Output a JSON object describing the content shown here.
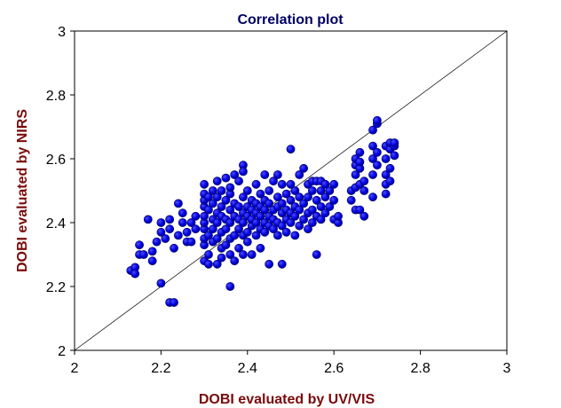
{
  "colors": {
    "title": "#000066",
    "axis_label": "#7a0a0a",
    "points": "#0000e0",
    "point_edge": "#000060"
  },
  "chart_data": {
    "type": "scatter",
    "title": "Correlation plot",
    "xlabel": "DOBI evaluated by UV/VIS",
    "ylabel": "DOBI evaluated by NIRS",
    "xlim": [
      2,
      3
    ],
    "ylim": [
      2,
      3
    ],
    "xticks": [
      "2",
      "2.2",
      "2.4",
      "2.6",
      "2.8",
      "3"
    ],
    "yticks": [
      "2",
      "2.2",
      "2.4",
      "2.6",
      "2.8",
      "3"
    ],
    "grid": false,
    "reference_line": "y = x",
    "points": [
      [
        2.13,
        2.25
      ],
      [
        2.14,
        2.26
      ],
      [
        2.14,
        2.24
      ],
      [
        2.15,
        2.3
      ],
      [
        2.15,
        2.33
      ],
      [
        2.16,
        2.3
      ],
      [
        2.17,
        2.41
      ],
      [
        2.18,
        2.28
      ],
      [
        2.18,
        2.31
      ],
      [
        2.19,
        2.34
      ],
      [
        2.2,
        2.21
      ],
      [
        2.2,
        2.37
      ],
      [
        2.2,
        2.4
      ],
      [
        2.21,
        2.35
      ],
      [
        2.22,
        2.41
      ],
      [
        2.22,
        2.15
      ],
      [
        2.23,
        2.15
      ],
      [
        2.22,
        2.38
      ],
      [
        2.23,
        2.32
      ],
      [
        2.24,
        2.36
      ],
      [
        2.24,
        2.46
      ],
      [
        2.25,
        2.4
      ],
      [
        2.25,
        2.43
      ],
      [
        2.26,
        2.37
      ],
      [
        2.26,
        2.34
      ],
      [
        2.27,
        2.34
      ],
      [
        2.27,
        2.4
      ],
      [
        2.28,
        2.38
      ],
      [
        2.28,
        2.42
      ],
      [
        2.3,
        2.28
      ],
      [
        2.3,
        2.33
      ],
      [
        2.3,
        2.35
      ],
      [
        2.3,
        2.38
      ],
      [
        2.3,
        2.4
      ],
      [
        2.3,
        2.42
      ],
      [
        2.3,
        2.45
      ],
      [
        2.3,
        2.47
      ],
      [
        2.3,
        2.49
      ],
      [
        2.3,
        2.52
      ],
      [
        2.31,
        2.27
      ],
      [
        2.31,
        2.3
      ],
      [
        2.31,
        2.36
      ],
      [
        2.31,
        2.44
      ],
      [
        2.31,
        2.48
      ],
      [
        2.32,
        2.34
      ],
      [
        2.32,
        2.38
      ],
      [
        2.32,
        2.41
      ],
      [
        2.32,
        2.46
      ],
      [
        2.32,
        2.5
      ],
      [
        2.33,
        2.27
      ],
      [
        2.33,
        2.35
      ],
      [
        2.33,
        2.4
      ],
      [
        2.33,
        2.43
      ],
      [
        2.33,
        2.48
      ],
      [
        2.33,
        2.53
      ],
      [
        2.34,
        2.29
      ],
      [
        2.34,
        2.32
      ],
      [
        2.34,
        2.37
      ],
      [
        2.34,
        2.42
      ],
      [
        2.34,
        2.45
      ],
      [
        2.34,
        2.5
      ],
      [
        2.35,
        2.33
      ],
      [
        2.35,
        2.38
      ],
      [
        2.35,
        2.41
      ],
      [
        2.35,
        2.47
      ],
      [
        2.35,
        2.54
      ],
      [
        2.36,
        2.2
      ],
      [
        2.36,
        2.3
      ],
      [
        2.36,
        2.35
      ],
      [
        2.36,
        2.4
      ],
      [
        2.36,
        2.44
      ],
      [
        2.36,
        2.49
      ],
      [
        2.36,
        2.51
      ],
      [
        2.37,
        2.28
      ],
      [
        2.37,
        2.36
      ],
      [
        2.37,
        2.42
      ],
      [
        2.37,
        2.46
      ],
      [
        2.37,
        2.55
      ],
      [
        2.38,
        2.32
      ],
      [
        2.38,
        2.38
      ],
      [
        2.38,
        2.41
      ],
      [
        2.38,
        2.45
      ],
      [
        2.38,
        2.53
      ],
      [
        2.39,
        2.3
      ],
      [
        2.39,
        2.36
      ],
      [
        2.39,
        2.4
      ],
      [
        2.39,
        2.43
      ],
      [
        2.39,
        2.48
      ],
      [
        2.39,
        2.58
      ],
      [
        2.39,
        2.56
      ],
      [
        2.4,
        2.34
      ],
      [
        2.4,
        2.37
      ],
      [
        2.4,
        2.42
      ],
      [
        2.4,
        2.45
      ],
      [
        2.4,
        2.5
      ],
      [
        2.41,
        2.3
      ],
      [
        2.41,
        2.39
      ],
      [
        2.41,
        2.41
      ],
      [
        2.41,
        2.44
      ],
      [
        2.41,
        2.47
      ],
      [
        2.42,
        2.36
      ],
      [
        2.42,
        2.4
      ],
      [
        2.42,
        2.43
      ],
      [
        2.42,
        2.46
      ],
      [
        2.42,
        2.52
      ],
      [
        2.43,
        2.32
      ],
      [
        2.43,
        2.38
      ],
      [
        2.43,
        2.42
      ],
      [
        2.43,
        2.45
      ],
      [
        2.43,
        2.49
      ],
      [
        2.44,
        2.37
      ],
      [
        2.44,
        2.4
      ],
      [
        2.44,
        2.44
      ],
      [
        2.44,
        2.47
      ],
      [
        2.44,
        2.55
      ],
      [
        2.45,
        2.27
      ],
      [
        2.45,
        2.39
      ],
      [
        2.45,
        2.42
      ],
      [
        2.45,
        2.46
      ],
      [
        2.45,
        2.5
      ],
      [
        2.46,
        2.38
      ],
      [
        2.46,
        2.41
      ],
      [
        2.46,
        2.44
      ],
      [
        2.46,
        2.53
      ],
      [
        2.47,
        2.36
      ],
      [
        2.47,
        2.4
      ],
      [
        2.47,
        2.45
      ],
      [
        2.47,
        2.48
      ],
      [
        2.47,
        2.55
      ],
      [
        2.48,
        2.27
      ],
      [
        2.48,
        2.39
      ],
      [
        2.48,
        2.43
      ],
      [
        2.48,
        2.46
      ],
      [
        2.48,
        2.52
      ],
      [
        2.49,
        2.37
      ],
      [
        2.49,
        2.41
      ],
      [
        2.49,
        2.44
      ],
      [
        2.49,
        2.49
      ],
      [
        2.5,
        2.4
      ],
      [
        2.5,
        2.43
      ],
      [
        2.5,
        2.47
      ],
      [
        2.5,
        2.63
      ],
      [
        2.5,
        2.52
      ],
      [
        2.51,
        2.36
      ],
      [
        2.51,
        2.42
      ],
      [
        2.51,
        2.45
      ],
      [
        2.51,
        2.5
      ],
      [
        2.52,
        2.39
      ],
      [
        2.52,
        2.44
      ],
      [
        2.52,
        2.48
      ],
      [
        2.52,
        2.55
      ],
      [
        2.53,
        2.41
      ],
      [
        2.53,
        2.46
      ],
      [
        2.53,
        2.57
      ],
      [
        2.54,
        2.38
      ],
      [
        2.54,
        2.43
      ],
      [
        2.54,
        2.48
      ],
      [
        2.54,
        2.52
      ],
      [
        2.55,
        2.4
      ],
      [
        2.55,
        2.44
      ],
      [
        2.55,
        2.5
      ],
      [
        2.55,
        2.53
      ],
      [
        2.56,
        2.3
      ],
      [
        2.56,
        2.42
      ],
      [
        2.56,
        2.47
      ],
      [
        2.56,
        2.53
      ],
      [
        2.57,
        2.41
      ],
      [
        2.57,
        2.45
      ],
      [
        2.57,
        2.5
      ],
      [
        2.57,
        2.53
      ],
      [
        2.58,
        2.43
      ],
      [
        2.58,
        2.48
      ],
      [
        2.58,
        2.52
      ],
      [
        2.59,
        2.45
      ],
      [
        2.59,
        2.5
      ],
      [
        2.6,
        2.41
      ],
      [
        2.6,
        2.47
      ],
      [
        2.6,
        2.52
      ],
      [
        2.61,
        2.4
      ],
      [
        2.61,
        2.42
      ],
      [
        2.64,
        2.47
      ],
      [
        2.64,
        2.5
      ],
      [
        2.65,
        2.44
      ],
      [
        2.65,
        2.51
      ],
      [
        2.65,
        2.55
      ],
      [
        2.65,
        2.58
      ],
      [
        2.65,
        2.6
      ],
      [
        2.66,
        2.44
      ],
      [
        2.66,
        2.52
      ],
      [
        2.66,
        2.57
      ],
      [
        2.66,
        2.62
      ],
      [
        2.66,
        2.59
      ],
      [
        2.67,
        2.42
      ],
      [
        2.67,
        2.5
      ],
      [
        2.67,
        2.53
      ],
      [
        2.69,
        2.48
      ],
      [
        2.69,
        2.55
      ],
      [
        2.69,
        2.6
      ],
      [
        2.69,
        2.64
      ],
      [
        2.69,
        2.69
      ],
      [
        2.7,
        2.71
      ],
      [
        2.7,
        2.72
      ],
      [
        2.7,
        2.58
      ],
      [
        2.7,
        2.62
      ],
      [
        2.72,
        2.49
      ],
      [
        2.72,
        2.52
      ],
      [
        2.72,
        2.55
      ],
      [
        2.72,
        2.6
      ],
      [
        2.72,
        2.64
      ],
      [
        2.73,
        2.53
      ],
      [
        2.73,
        2.57
      ],
      [
        2.73,
        2.63
      ],
      [
        2.73,
        2.65
      ],
      [
        2.74,
        2.61
      ],
      [
        2.74,
        2.64
      ],
      [
        2.74,
        2.65
      ]
    ]
  }
}
